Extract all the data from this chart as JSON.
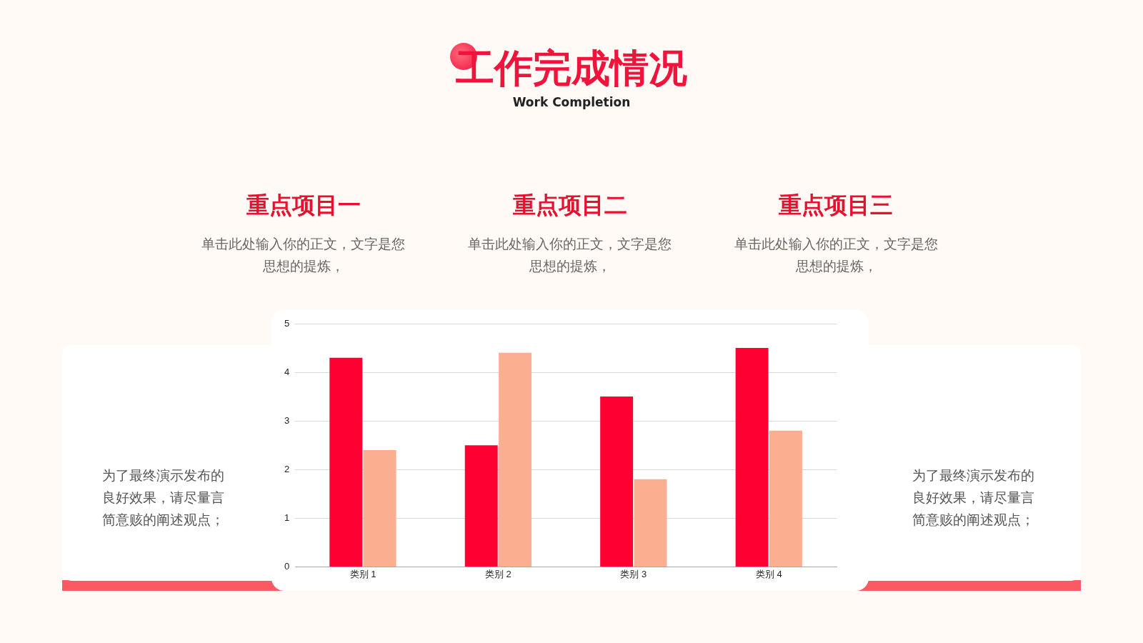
{
  "chart_data": {
    "type": "bar",
    "title": "工作完成情况",
    "subtitle": "Work Completion",
    "categories": [
      "类别 1",
      "类别 2",
      "类别 3",
      "类别 4"
    ],
    "series": [
      {
        "color": "#ff0033",
        "values": [
          4.3,
          2.5,
          3.5,
          4.5
        ]
      },
      {
        "color": "#fcae90",
        "values": [
          2.4,
          4.4,
          1.8,
          2.8
        ]
      }
    ],
    "ylim": [
      0,
      5
    ],
    "yticks": [
      0,
      1,
      2,
      3,
      4,
      5
    ],
    "grid": "y",
    "legend": false,
    "annotations": [
      "重点项目一",
      "单击此处输入你的正文，文字是您思想的提炼，",
      "重点项目二",
      "单击此处输入你的正文，文字是您思想的提炼，",
      "重点项目三",
      "单击此处输入你的正文，文字是您思想的提炼，",
      "为了最终演示发布的良好效果，请尽量言简意赅的阐述观点；",
      "为了最终演示发布的良好效果，请尽量言简意赅的阐述观点；"
    ]
  }
}
